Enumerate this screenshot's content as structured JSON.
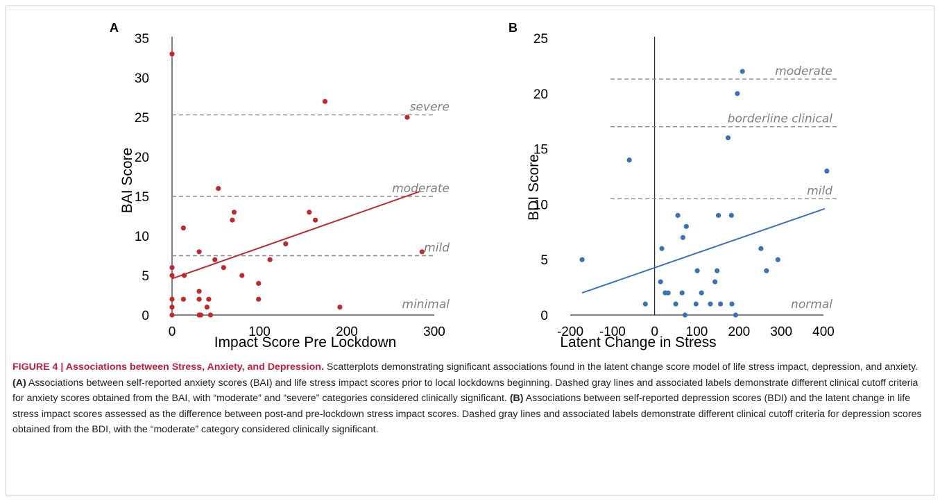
{
  "chart_data": [
    {
      "panel": "A",
      "type": "scatter",
      "xlabel": "Impact Score Pre Lockdown",
      "ylabel": "BAI Score",
      "xlim": [
        0,
        300
      ],
      "ylim": [
        0,
        35
      ],
      "xticks": [
        "0",
        "100",
        "200",
        "300"
      ],
      "yticks": [
        "0",
        "5",
        "10",
        "15",
        "20",
        "25",
        "30",
        "35"
      ],
      "color": "#c0282c",
      "points": [
        {
          "x": 0,
          "y": 33
        },
        {
          "x": 0,
          "y": 6
        },
        {
          "x": 0,
          "y": 5
        },
        {
          "x": 0,
          "y": 2
        },
        {
          "x": 0,
          "y": 1
        },
        {
          "x": 0,
          "y": 0
        },
        {
          "x": 13,
          "y": 11
        },
        {
          "x": 14,
          "y": 5
        },
        {
          "x": 13,
          "y": 2
        },
        {
          "x": 31,
          "y": 8
        },
        {
          "x": 31,
          "y": 3
        },
        {
          "x": 31,
          "y": 2
        },
        {
          "x": 31,
          "y": 0
        },
        {
          "x": 33,
          "y": 0
        },
        {
          "x": 40,
          "y": 1
        },
        {
          "x": 42,
          "y": 2
        },
        {
          "x": 44,
          "y": 0
        },
        {
          "x": 49,
          "y": 7
        },
        {
          "x": 53,
          "y": 16
        },
        {
          "x": 59,
          "y": 6
        },
        {
          "x": 69,
          "y": 12
        },
        {
          "x": 71,
          "y": 13
        },
        {
          "x": 80,
          "y": 5
        },
        {
          "x": 99,
          "y": 4
        },
        {
          "x": 99,
          "y": 2
        },
        {
          "x": 112,
          "y": 7
        },
        {
          "x": 130,
          "y": 9
        },
        {
          "x": 157,
          "y": 13
        },
        {
          "x": 164,
          "y": 12
        },
        {
          "x": 175,
          "y": 27
        },
        {
          "x": 192,
          "y": 1
        },
        {
          "x": 269,
          "y": 25
        },
        {
          "x": 286,
          "y": 8
        }
      ],
      "trendline": {
        "x": [
          0,
          283
        ],
        "y": [
          4.6,
          15.6
        ]
      },
      "cutoffs": [
        {
          "label": "severe",
          "y": 25.3
        },
        {
          "label": "moderate",
          "y": 15
        },
        {
          "label": "mild",
          "y": 7.5
        },
        {
          "label": "minimal",
          "y": null
        }
      ]
    },
    {
      "panel": "B",
      "type": "scatter",
      "xlabel": "Latent Change in Stress",
      "ylabel": "BDI Score",
      "xlim": [
        -200,
        400
      ],
      "ylim": [
        0,
        25
      ],
      "xticks": [
        "-200",
        "-100",
        "0",
        "100",
        "200",
        "300",
        "400"
      ],
      "yticks": [
        "0",
        "5",
        "10",
        "15",
        "20",
        "25"
      ],
      "color": "#3a72b6",
      "points": [
        {
          "x": -172,
          "y": 5
        },
        {
          "x": -60,
          "y": 14
        },
        {
          "x": -22,
          "y": 1
        },
        {
          "x": 14,
          "y": 3
        },
        {
          "x": 17,
          "y": 6
        },
        {
          "x": 25,
          "y": 2
        },
        {
          "x": 32,
          "y": 2
        },
        {
          "x": 50,
          "y": 1
        },
        {
          "x": 55,
          "y": 9
        },
        {
          "x": 65,
          "y": 2
        },
        {
          "x": 67,
          "y": 7
        },
        {
          "x": 75,
          "y": 8
        },
        {
          "x": 72,
          "y": 0
        },
        {
          "x": 98,
          "y": 1
        },
        {
          "x": 101,
          "y": 4
        },
        {
          "x": 111,
          "y": 2
        },
        {
          "x": 132,
          "y": 1
        },
        {
          "x": 143,
          "y": 3
        },
        {
          "x": 148,
          "y": 4
        },
        {
          "x": 151,
          "y": 9
        },
        {
          "x": 156,
          "y": 1
        },
        {
          "x": 174,
          "y": 16
        },
        {
          "x": 182,
          "y": 9
        },
        {
          "x": 183,
          "y": 1
        },
        {
          "x": 192,
          "y": 0
        },
        {
          "x": 196,
          "y": 20
        },
        {
          "x": 208,
          "y": 22
        },
        {
          "x": 252,
          "y": 6
        },
        {
          "x": 265,
          "y": 4
        },
        {
          "x": 292,
          "y": 5
        },
        {
          "x": 408,
          "y": 13
        }
      ],
      "trendline": {
        "x": [
          -172,
          403
        ],
        "y": [
          2.0,
          9.6
        ]
      },
      "cutoffs": [
        {
          "label": "moderate",
          "y": 21.3
        },
        {
          "label": "borderline clinical",
          "y": 17
        },
        {
          "label": "mild",
          "y": 10.5
        },
        {
          "label": "normal",
          "y": null
        }
      ]
    }
  ],
  "caption": {
    "title": "FIGURE 4 | Associations between Stress, Anxiety, and Depression.",
    "intro": " Scatterplots demonstrating significant associations found in the latent change score model of life stress impact, depression, and anxiety. ",
    "a_label": "(A)",
    "a_text": " Associations between self-reported anxiety scores (BAI) and life stress impact scores prior to local lockdowns beginning. Dashed gray lines and associated labels demonstrate different clinical cutoff criteria for anxiety scores obtained from the BAI, with “moderate” and “severe” categories considered clinically significant. ",
    "b_label": "(B)",
    "b_text": " Associations between self-reported depression scores (BDI) and the latent change in life stress impact scores assessed as the difference between post-and pre-lockdown stress impact scores. Dashed gray lines and associated labels demonstrate different clinical cutoff criteria for depression scores obtained from the BDI, with the “moderate” category considered clinically significant."
  }
}
